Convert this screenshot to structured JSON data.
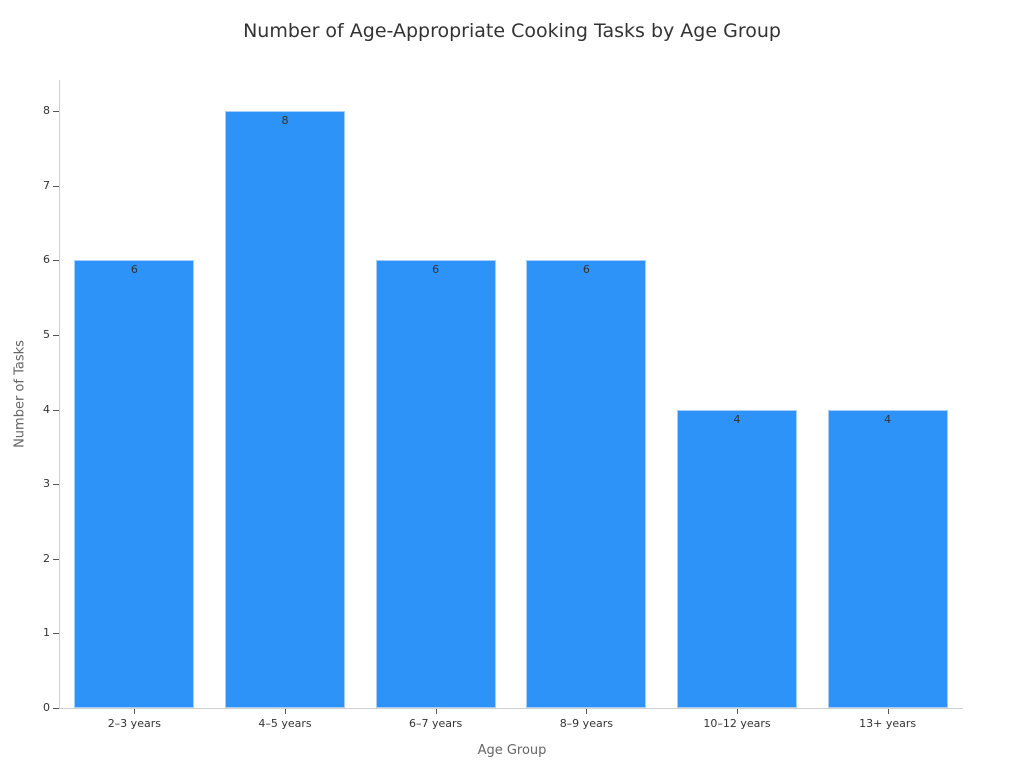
{
  "chart_data": {
    "type": "bar",
    "title": "Number of Age-Appropriate Cooking Tasks by Age Group",
    "xlabel": "Age Group",
    "ylabel": "Number of Tasks",
    "categories": [
      "2–3 years",
      "4–5 years",
      "6–7 years",
      "8–9 years",
      "10–12 years",
      "13+ years"
    ],
    "values": [
      6,
      8,
      6,
      6,
      4,
      4
    ],
    "ylim": [
      0,
      8.4
    ],
    "yticks": [
      0,
      1,
      2,
      3,
      4,
      5,
      6,
      7,
      8
    ],
    "grid": false,
    "legend": null,
    "bar_color": "#2e93f8",
    "data_labels": true
  }
}
